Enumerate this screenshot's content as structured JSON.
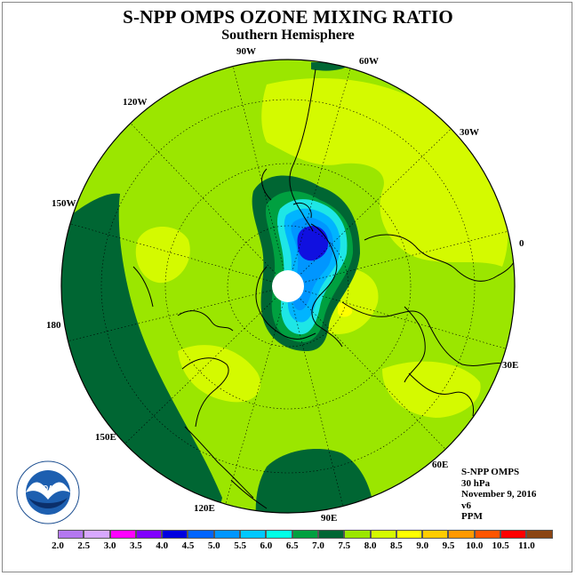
{
  "header": {
    "title": "S-NPP OMPS OZONE MIXING RATIO",
    "subtitle": "Southern Hemisphere"
  },
  "map": {
    "projection": "south polar stereographic",
    "longitude_labels": [
      "90W",
      "60W",
      "30W",
      "0",
      "30E",
      "60E",
      "90E",
      "120E",
      "150E",
      "180",
      "150W",
      "120W"
    ],
    "colors": {
      "background_level": "#9be600",
      "high_band": "#d4fa00",
      "dark_green": "#006633",
      "mid_green": "#00a040",
      "cyan": "#1ee6e6",
      "light_blue": "#00b4ff",
      "blue": "#0096ff",
      "dark_blue": "#1010e0",
      "yellow": "#ffff00"
    }
  },
  "info": {
    "instrument": "S-NPP OMPS",
    "level": "30 hPa",
    "date": "November 9, 2016",
    "version": "v6",
    "units": "PPM"
  },
  "logo": {
    "text": "NOAA"
  },
  "colorbar": {
    "ticks": [
      "2.0",
      "2.5",
      "3.0",
      "3.5",
      "4.0",
      "4.5",
      "5.0",
      "5.5",
      "6.0",
      "6.5",
      "7.0",
      "7.5",
      "8.0",
      "8.5",
      "9.0",
      "9.5",
      "10.0",
      "10.5",
      "11.0"
    ],
    "colors": [
      "#b478f0",
      "#d8a8ff",
      "#ff00ff",
      "#8000ff",
      "#0000e0",
      "#0064ff",
      "#0096ff",
      "#00c8ff",
      "#00ffe6",
      "#00a040",
      "#006633",
      "#9be600",
      "#d4fa00",
      "#ffff00",
      "#ffcc00",
      "#ff9900",
      "#ff5500",
      "#ff0000",
      "#8b4513"
    ]
  }
}
